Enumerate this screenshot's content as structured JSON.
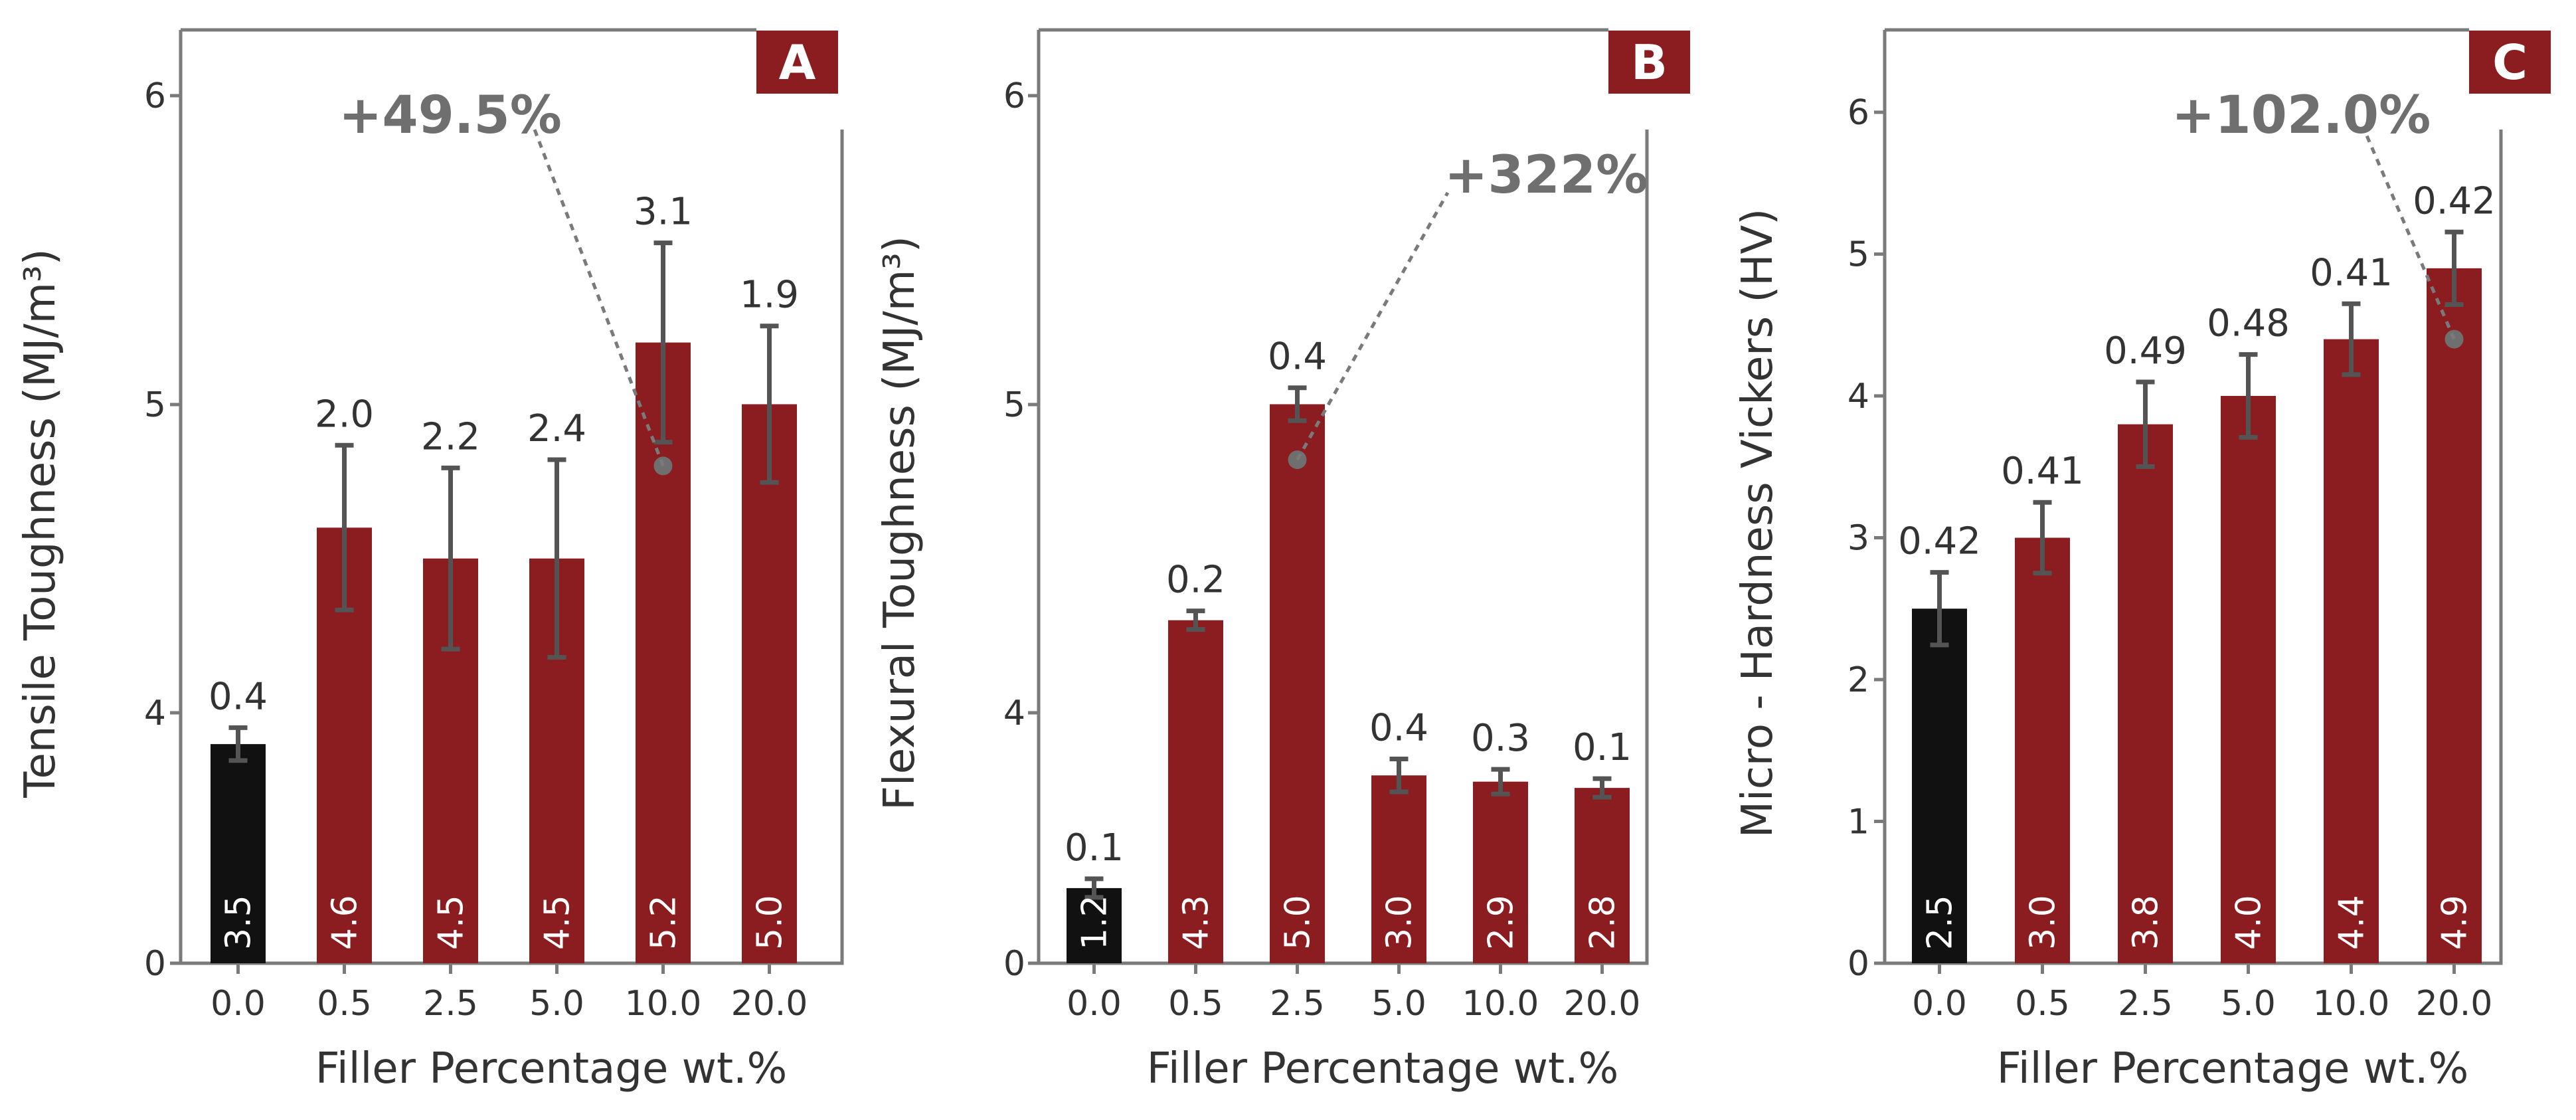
{
  "colors": {
    "control_bar": "#111111",
    "filled_bar": "#8b1c1f",
    "panel_badge": "#8b1c1f",
    "axis": "#7a7a7a",
    "error_bar": "#545454",
    "annotation": "#6f6f6f",
    "marker": "#6f6f6f"
  },
  "chart_data": [
    {
      "type": "bar",
      "panel_label": "A",
      "xlabel": "Filler Percentage wt.%",
      "ylabel": "Tensile Toughness (MJ/m³)",
      "categories": [
        "0.0",
        "0.5",
        "2.5",
        "5.0",
        "10.0",
        "20.0"
      ],
      "values": [
        3.5,
        4.6,
        4.5,
        4.5,
        5.2,
        5.0
      ],
      "value_labels": [
        "3.5",
        "4.6",
        "4.5",
        "4.5",
        "5.2",
        "5.0"
      ],
      "std_dev": [
        0.4,
        2.0,
        2.2,
        2.4,
        3.1,
        1.9
      ],
      "std_labels": [
        "0.4",
        "2.0",
        "2.2",
        "2.4",
        "3.1",
        "1.9"
      ],
      "y_axis_break": true,
      "ylim": [
        0,
        6
      ],
      "yticks": [
        0,
        4,
        5,
        6
      ],
      "ytick_labels": [
        "0",
        "4",
        "5",
        "6"
      ],
      "annotation": {
        "text": "+49.5%",
        "category_index": 4,
        "marker_value": 4.8
      }
    },
    {
      "type": "bar",
      "panel_label": "B",
      "xlabel": "Filler Percentage wt.%",
      "ylabel": "Flexural Toughness (MJ/m³)",
      "categories": [
        "0.0",
        "0.5",
        "2.5",
        "5.0",
        "10.0",
        "20.0"
      ],
      "values": [
        1.2,
        4.3,
        5.0,
        3.0,
        2.9,
        2.8
      ],
      "value_labels": [
        "1.2",
        "4.3",
        "5.0",
        "3.0",
        "2.9",
        "2.8"
      ],
      "std_dev": [
        0.1,
        0.2,
        0.4,
        0.4,
        0.3,
        0.1
      ],
      "std_labels": [
        "0.1",
        "0.2",
        "0.4",
        "0.4",
        "0.3",
        "0.1"
      ],
      "y_axis_break": true,
      "ylim": [
        0,
        6
      ],
      "yticks": [
        0,
        4,
        5,
        6
      ],
      "ytick_labels": [
        "0",
        "4",
        "5",
        "6"
      ],
      "annotation": {
        "text": "+322%",
        "category_index": 2,
        "marker_value": 4.82
      }
    },
    {
      "type": "bar",
      "panel_label": "C",
      "xlabel": "Filler Percentage wt.%",
      "ylabel": "Micro - Hardness Vickers (HV)",
      "categories": [
        "0.0",
        "0.5",
        "2.5",
        "5.0",
        "10.0",
        "20.0"
      ],
      "values": [
        2.5,
        3.0,
        3.8,
        4.0,
        4.4,
        4.9
      ],
      "value_labels": [
        "2.5",
        "3.0",
        "3.8",
        "4.0",
        "4.4",
        "4.9"
      ],
      "std_dev": [
        0.42,
        0.41,
        0.49,
        0.48,
        0.41,
        0.42
      ],
      "std_labels": [
        "0.42",
        "0.41",
        "0.49",
        "0.48",
        "0.41",
        "0.42"
      ],
      "y_axis_break": false,
      "ylim": [
        0,
        6.5
      ],
      "yticks": [
        0,
        1,
        2,
        3,
        4,
        5,
        6
      ],
      "ytick_labels": [
        "0",
        "1",
        "2",
        "3",
        "4",
        "5",
        "6"
      ],
      "annotation": {
        "text": "+102.0%",
        "category_index": 5,
        "marker_value": 4.4
      }
    }
  ]
}
